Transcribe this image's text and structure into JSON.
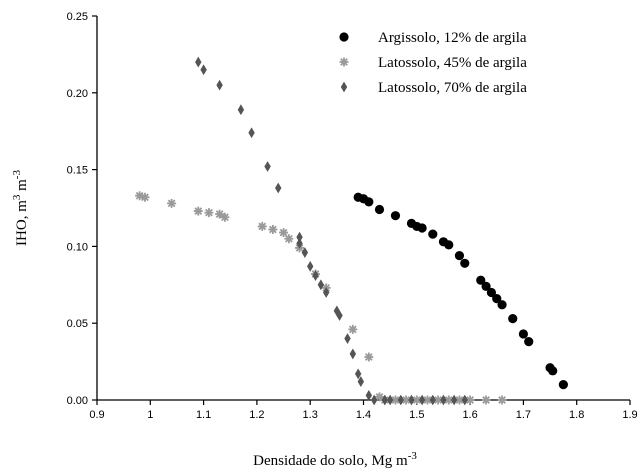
{
  "chart_data": {
    "type": "scatter",
    "xlabel": {
      "prefix": "Densidade do solo, Mg m",
      "sup": "-3"
    },
    "ylabel": {
      "p1": "IHO, m",
      "s1": "3",
      "p2": " m",
      "s2": "-3"
    },
    "xlim": [
      0.9,
      1.9
    ],
    "ylim": [
      0,
      0.25
    ],
    "x_ticks": [
      "0.9",
      "1",
      "1.1",
      "1.2",
      "1.3",
      "1.4",
      "1.5",
      "1.6",
      "1.7",
      "1.8",
      "1.9"
    ],
    "y_ticks": [
      "0.00",
      "0.05",
      "0.10",
      "0.15",
      "0.20",
      "0.25"
    ],
    "grid": false,
    "legend_position": "top-right",
    "series": [
      {
        "name": "Argissolo, 12% de argila",
        "marker": "circle",
        "color": "#000000",
        "points": [
          [
            1.39,
            0.132
          ],
          [
            1.4,
            0.131
          ],
          [
            1.41,
            0.129
          ],
          [
            1.43,
            0.124
          ],
          [
            1.46,
            0.12
          ],
          [
            1.49,
            0.115
          ],
          [
            1.5,
            0.113
          ],
          [
            1.51,
            0.112
          ],
          [
            1.53,
            0.108
          ],
          [
            1.55,
            0.103
          ],
          [
            1.56,
            0.101
          ],
          [
            1.58,
            0.094
          ],
          [
            1.59,
            0.089
          ],
          [
            1.62,
            0.078
          ],
          [
            1.63,
            0.074
          ],
          [
            1.64,
            0.07
          ],
          [
            1.65,
            0.066
          ],
          [
            1.66,
            0.062
          ],
          [
            1.68,
            0.053
          ],
          [
            1.7,
            0.043
          ],
          [
            1.71,
            0.038
          ],
          [
            1.75,
            0.021
          ],
          [
            1.755,
            0.019
          ],
          [
            1.775,
            0.01
          ]
        ]
      },
      {
        "name": "Latossolo, 45% de argila",
        "marker": "asterisk",
        "color": "#9a9a9a",
        "points": [
          [
            0.98,
            0.133
          ],
          [
            0.99,
            0.132
          ],
          [
            1.04,
            0.128
          ],
          [
            1.09,
            0.123
          ],
          [
            1.11,
            0.122
          ],
          [
            1.13,
            0.121
          ],
          [
            1.14,
            0.119
          ],
          [
            1.21,
            0.113
          ],
          [
            1.23,
            0.111
          ],
          [
            1.25,
            0.109
          ],
          [
            1.26,
            0.105
          ],
          [
            1.28,
            0.099
          ],
          [
            1.31,
            0.082
          ],
          [
            1.33,
            0.073
          ],
          [
            1.38,
            0.046
          ],
          [
            1.41,
            0.028
          ],
          [
            1.43,
            0.002
          ],
          [
            1.44,
            0.0
          ],
          [
            1.46,
            0.0
          ],
          [
            1.48,
            0.0
          ],
          [
            1.5,
            0.0
          ],
          [
            1.52,
            0.0
          ],
          [
            1.54,
            0.0
          ],
          [
            1.56,
            0.0
          ],
          [
            1.58,
            0.0
          ],
          [
            1.6,
            0.0
          ],
          [
            1.63,
            0.0
          ],
          [
            1.66,
            0.0
          ]
        ]
      },
      {
        "name": "Latossolo, 70% de argila",
        "marker": "diamond",
        "color": "#555555",
        "points": [
          [
            1.09,
            0.22
          ],
          [
            1.1,
            0.215
          ],
          [
            1.13,
            0.205
          ],
          [
            1.17,
            0.189
          ],
          [
            1.19,
            0.174
          ],
          [
            1.22,
            0.152
          ],
          [
            1.24,
            0.138
          ],
          [
            1.28,
            0.106
          ],
          [
            1.28,
            0.102
          ],
          [
            1.29,
            0.096
          ],
          [
            1.3,
            0.087
          ],
          [
            1.31,
            0.081
          ],
          [
            1.32,
            0.075
          ],
          [
            1.33,
            0.07
          ],
          [
            1.35,
            0.058
          ],
          [
            1.355,
            0.055
          ],
          [
            1.37,
            0.04
          ],
          [
            1.38,
            0.03
          ],
          [
            1.39,
            0.017
          ],
          [
            1.395,
            0.012
          ],
          [
            1.41,
            0.003
          ],
          [
            1.42,
            0.0
          ],
          [
            1.44,
            0.0
          ],
          [
            1.45,
            0.0
          ],
          [
            1.47,
            0.0
          ],
          [
            1.49,
            0.0
          ],
          [
            1.51,
            0.0
          ],
          [
            1.53,
            0.0
          ],
          [
            1.55,
            0.0
          ],
          [
            1.57,
            0.0
          ],
          [
            1.59,
            0.0
          ]
        ]
      }
    ]
  }
}
